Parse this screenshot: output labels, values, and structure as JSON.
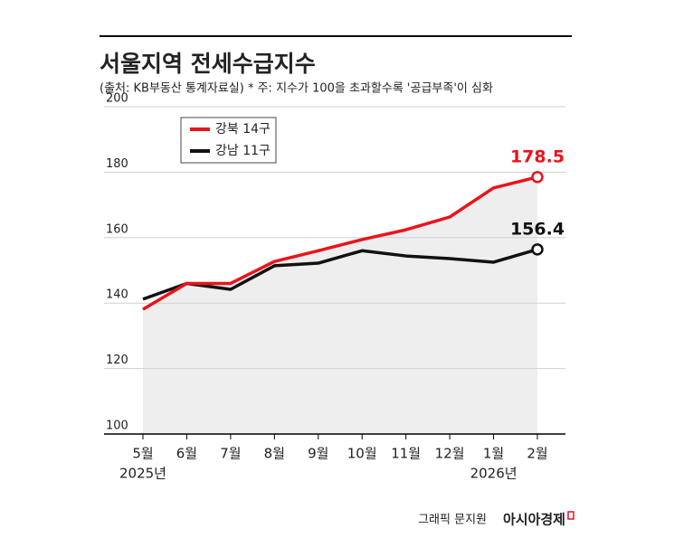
{
  "chart_data": {
    "type": "line",
    "title": "서울지역 전세수급지수",
    "subtitle": "(출처: KB부동산 통계자료실)  * 주: 지수가 100을 초과할수록 '공급부족'이 심화",
    "categories": [
      "5월",
      "6월",
      "7월",
      "8월",
      "9월",
      "10월",
      "11월",
      "12월",
      "1월",
      "2월"
    ],
    "x_sublabels": [
      "2025년",
      null,
      null,
      null,
      null,
      null,
      null,
      null,
      "2026년",
      null
    ],
    "series": [
      {
        "name": "강북 14구",
        "color": "#e8141b",
        "values": [
          138.1,
          146,
          146,
          152.7,
          156,
          159.4,
          162.4,
          166.3,
          175.2,
          178.5
        ],
        "area": true,
        "area_color": "#eeeeee"
      },
      {
        "name": "강남 11구",
        "color": "#111111",
        "values": [
          141.2,
          146,
          144.2,
          151.4,
          152.2,
          156,
          154.4,
          153.6,
          152.5,
          156.4
        ]
      }
    ],
    "ylim": [
      100,
      200
    ],
    "yticks": [
      100,
      120,
      140,
      160,
      180,
      200
    ],
    "grid": true,
    "credit": "그래픽 문지원",
    "publisher": "아시아경제"
  }
}
